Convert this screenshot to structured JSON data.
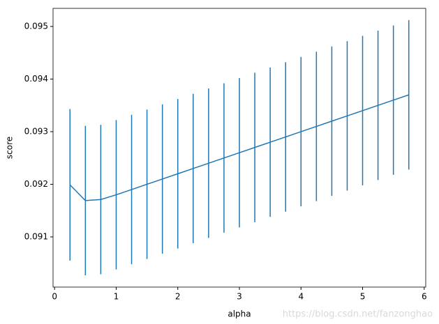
{
  "chart_data": {
    "type": "errorbar_line",
    "xlabel": "alpha",
    "ylabel": "score",
    "watermark": "https://blog.csdn.net/fanzonghao",
    "x": [
      0.25,
      0.5,
      0.75,
      1,
      1.25,
      1.5,
      1.75,
      2,
      2.25,
      2.5,
      2.75,
      3,
      3.25,
      3.5,
      3.75,
      4,
      4.25,
      4.5,
      4.75,
      5,
      5.25,
      5.5,
      5.75
    ],
    "series": [
      {
        "color": "#1f77b4",
        "values": [
          0.09199,
          0.09169,
          0.09171,
          0.0918,
          0.0919,
          0.092,
          0.0921,
          0.0922,
          0.0923,
          0.0924,
          0.0925,
          0.0926,
          0.0927,
          0.0928,
          0.0929,
          0.093,
          0.0931,
          0.0932,
          0.0933,
          0.0934,
          0.0935,
          0.0936,
          0.0937
        ],
        "errors": [
          0.00144,
          0.00142,
          0.00142,
          0.00142,
          0.00142,
          0.00142,
          0.00142,
          0.00142,
          0.00142,
          0.00142,
          0.00142,
          0.00142,
          0.00142,
          0.00142,
          0.00142,
          0.00142,
          0.00142,
          0.00142,
          0.00142,
          0.00142,
          0.00142,
          0.00142,
          0.00142
        ]
      }
    ],
    "xlim": [
      -0.025,
      6.025
    ],
    "ylim": [
      0.090046,
      0.095344
    ],
    "xticks": [
      0,
      1,
      2,
      3,
      4,
      5,
      6
    ],
    "yticks": [
      0.091,
      0.092,
      0.093,
      0.094,
      0.095
    ]
  }
}
